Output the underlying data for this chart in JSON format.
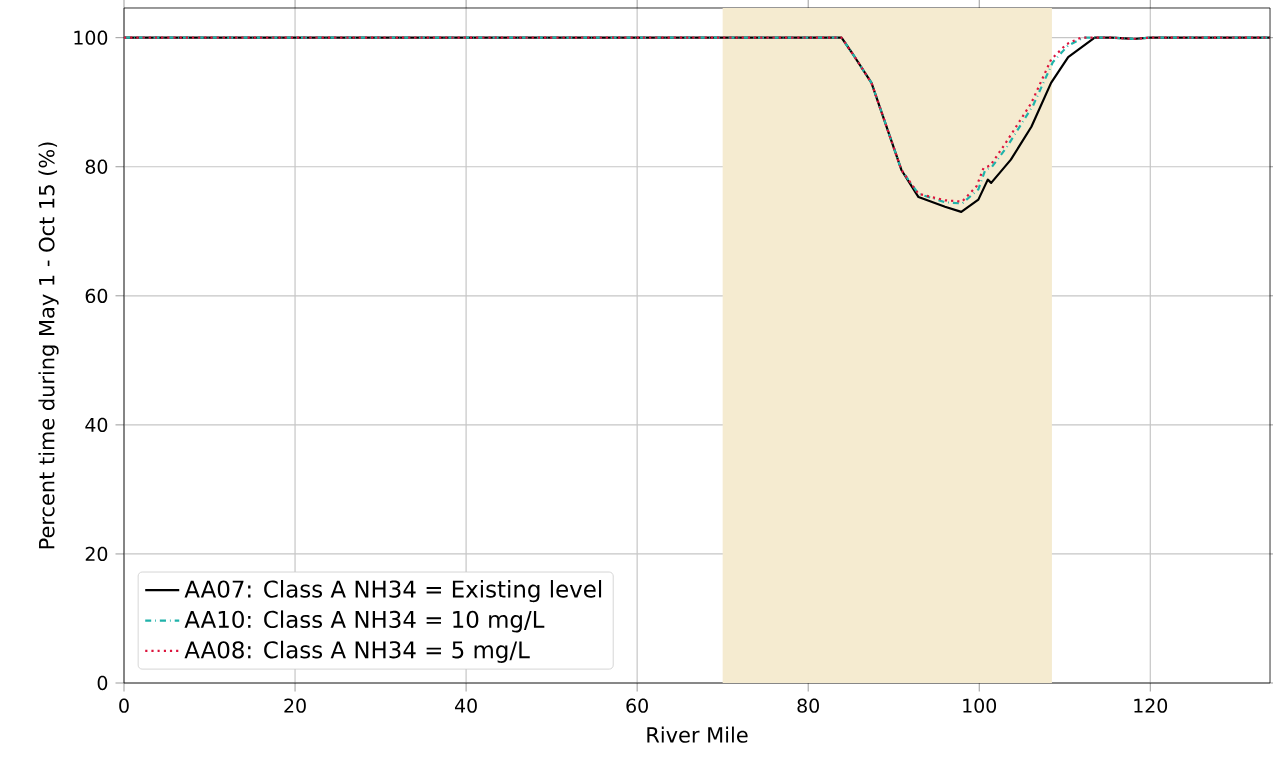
{
  "chart_data": {
    "type": "line",
    "xlabel": "River Mile",
    "ylabel": "Percent time during May 1 - Oct 15 (%)",
    "xlim": [
      0,
      134
    ],
    "ylim": [
      0,
      104.6
    ],
    "xticks": [
      0,
      20,
      40,
      60,
      80,
      100,
      120
    ],
    "yticks": [
      0,
      20,
      40,
      60,
      80,
      100
    ],
    "grid": true,
    "legend": "bottom left",
    "bands": [
      {
        "axis": "x",
        "from": 70,
        "to": 108.5,
        "color": "#f5ebd0"
      }
    ],
    "series": [
      {
        "name": "AA07: Class A NH34 = Existing level",
        "color": "#000000",
        "line_style": "solid",
        "x": [
          0,
          83.9,
          85.1,
          87.4,
          89.4,
          90.9,
          92.9,
          96.0,
          97.9,
          99.9,
          101.0,
          101.4,
          103.7,
          106.1,
          108.4,
          110.4,
          113.5,
          115.5,
          118,
          120,
          134
        ],
        "values": [
          100,
          100,
          97.7,
          93,
          85.3,
          79.5,
          75.3,
          73.8,
          73.0,
          74.9,
          78,
          77.5,
          81.1,
          86.2,
          93,
          97,
          100,
          100,
          99.8,
          100,
          100
        ]
      },
      {
        "name": "AA10: Class A NH34 = 10 mg/L",
        "color": "#20b2aa",
        "line_style": "dashdot",
        "x": [
          0,
          83.9,
          85.1,
          87.4,
          89.4,
          90.9,
          92.9,
          96.0,
          98.0,
          99.9,
          100.7,
          101.5,
          103.2,
          106.3,
          108.6,
          110.4,
          112.2,
          115.5,
          118,
          120,
          134
        ],
        "values": [
          100,
          100,
          97.7,
          93,
          85.3,
          79.5,
          75.8,
          74.5,
          74.3,
          76.5,
          79.5,
          80,
          83,
          89.5,
          96.2,
          98.8,
          100,
          100,
          99.8,
          100,
          100
        ]
      },
      {
        "name": "AA08: Class A NH34 = 5 mg/L",
        "color": "#dc143c",
        "line_style": "dotted",
        "x": [
          0,
          83.9,
          85.1,
          87.4,
          89.4,
          90.9,
          92.9,
          96.0,
          98.0,
          99.7,
          100.5,
          101.3,
          103.0,
          106.1,
          108.4,
          110.2,
          111.9,
          115.5,
          118,
          120,
          134
        ],
        "values": [
          100,
          100,
          97.7,
          93,
          85.3,
          79.5,
          75.8,
          74.8,
          74.6,
          77,
          79.8,
          80.2,
          83.5,
          89.9,
          96.6,
          99,
          100,
          100,
          99.8,
          100,
          100
        ]
      }
    ]
  }
}
